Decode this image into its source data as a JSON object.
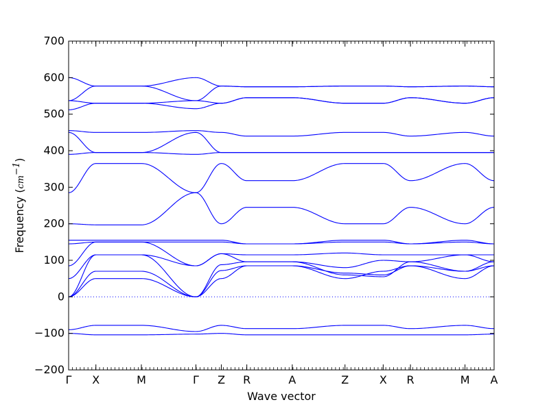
{
  "chart_data": {
    "type": "line",
    "title": "",
    "xlabel": "Wave vector",
    "ylabel": "Frequency (",
    "ylabel_unit": "cm",
    "ylabel_unit_exp": "−1",
    "ylabel_close": ")",
    "ylim": [
      -200,
      700
    ],
    "yticks": [
      -200,
      -100,
      0,
      100,
      200,
      300,
      400,
      500,
      600,
      700
    ],
    "xlim": [
      0,
      11.7
    ],
    "high_symmetry_points": [
      {
        "label": "Γ",
        "x": 0.0
      },
      {
        "label": "X",
        "x": 0.75
      },
      {
        "label": "M",
        "x": 2.0
      },
      {
        "label": "Γ",
        "x": 3.5
      },
      {
        "label": "Z",
        "x": 4.2
      },
      {
        "label": "R",
        "x": 4.9
      },
      {
        "label": "A",
        "x": 6.15
      },
      {
        "label": "Z",
        "x": 7.6
      },
      {
        "label": "X",
        "x": 8.65
      },
      {
        "label": "R",
        "x": 9.4
      },
      {
        "label": "M",
        "x": 10.9
      },
      {
        "label": "A",
        "x": 11.7
      }
    ],
    "zero_line": true,
    "line_color": "#0000ff",
    "zero_line_color": "#0000ff",
    "series": [
      {
        "values": [
          -100,
          -104,
          -104,
          -102,
          -100,
          -104,
          -104,
          -104,
          -104,
          -104,
          -104,
          -102
        ]
      },
      {
        "values": [
          -90,
          -78,
          -78,
          -95,
          -78,
          -87,
          -87,
          -78,
          -78,
          -87,
          -78,
          -87
        ]
      },
      {
        "values": [
          0,
          50,
          50,
          0,
          50,
          85,
          85,
          50,
          70,
          85,
          50,
          85
        ]
      },
      {
        "values": [
          0,
          70,
          70,
          0,
          72,
          85,
          85,
          65,
          60,
          85,
          70,
          85
        ]
      },
      {
        "values": [
          0,
          115,
          115,
          0,
          88,
          96,
          96,
          60,
          55,
          96,
          70,
          96
        ]
      },
      {
        "values": [
          50,
          115,
          115,
          85,
          118,
          96,
          96,
          80,
          100,
          96,
          115,
          96
        ]
      },
      {
        "values": [
          85,
          150,
          150,
          85,
          118,
          115,
          115,
          120,
          115,
          115,
          115,
          115
        ]
      },
      {
        "values": [
          145,
          150,
          150,
          150,
          150,
          145,
          145,
          150,
          150,
          145,
          150,
          145
        ]
      },
      {
        "values": [
          155,
          155,
          155,
          155,
          155,
          145,
          145,
          155,
          155,
          145,
          155,
          145
        ]
      },
      {
        "values": [
          200,
          197,
          197,
          285,
          200,
          245,
          245,
          200,
          200,
          245,
          200,
          245
        ]
      },
      {
        "values": [
          285,
          365,
          365,
          285,
          365,
          318,
          318,
          365,
          365,
          318,
          365,
          318
        ]
      },
      {
        "values": [
          390,
          395,
          395,
          390,
          395,
          395,
          395,
          395,
          395,
          395,
          395,
          395
        ]
      },
      {
        "values": [
          450,
          395,
          395,
          450,
          395,
          395,
          395,
          395,
          395,
          395,
          395,
          395
        ]
      },
      {
        "values": [
          455,
          450,
          450,
          455,
          450,
          440,
          440,
          450,
          450,
          440,
          450,
          440
        ]
      },
      {
        "values": [
          512,
          530,
          530,
          515,
          530,
          545,
          545,
          530,
          530,
          545,
          530,
          545
        ]
      },
      {
        "values": [
          537,
          530,
          530,
          537,
          530,
          545,
          545,
          530,
          530,
          545,
          530,
          545
        ]
      },
      {
        "values": [
          537,
          577,
          577,
          537,
          577,
          575,
          575,
          577,
          577,
          575,
          577,
          575
        ]
      },
      {
        "values": [
          600,
          577,
          577,
          600,
          577,
          575,
          575,
          577,
          577,
          575,
          577,
          575
        ]
      }
    ]
  }
}
